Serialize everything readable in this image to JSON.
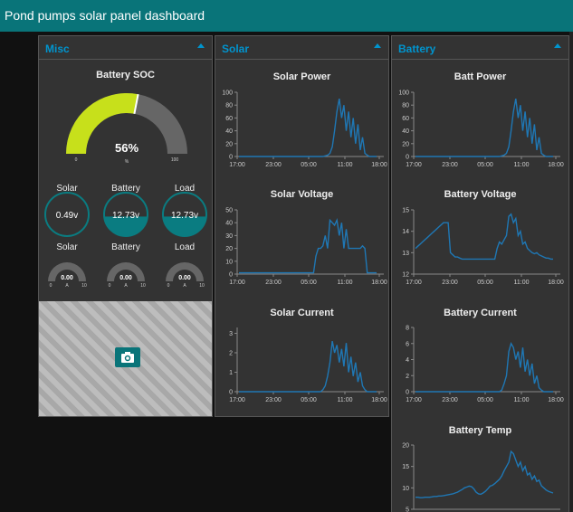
{
  "header": {
    "title": "Pond pumps solar panel dashboard"
  },
  "groups": {
    "misc": {
      "title": "Misc",
      "soc": {
        "title": "Battery SOC",
        "value": "56%",
        "percent": 56,
        "min": "0",
        "unit": "%",
        "max": "100"
      },
      "levels": [
        {
          "label": "Solar",
          "value": "0.49v",
          "fill": 0.0
        },
        {
          "label": "Battery",
          "value": "12.73v",
          "fill": 0.45
        },
        {
          "label": "Load",
          "value": "12.73v",
          "fill": 0.45
        }
      ],
      "currents": [
        {
          "label": "Solar",
          "value": "0.00",
          "min": "0",
          "unit": "A",
          "max": "10"
        },
        {
          "label": "Battery",
          "value": "0.00",
          "min": "0",
          "unit": "A",
          "max": "10"
        },
        {
          "label": "Load",
          "value": "0.00",
          "min": "0",
          "unit": "A",
          "max": "10"
        }
      ],
      "camera_icon": "camera-icon"
    },
    "solar": {
      "title": "Solar"
    },
    "battery": {
      "title": "Battery"
    }
  },
  "colors": {
    "accent": "#097479",
    "line": "#1f77b4",
    "soc_fill": "#c7e01b",
    "title": "#0094ce"
  },
  "chart_data": [
    {
      "id": "solar_power",
      "title": "Solar Power",
      "type": "line",
      "x_ticks": [
        "17:00",
        "23:00",
        "05:00",
        "11:00",
        "18:00"
      ],
      "y_ticks": [
        0,
        20,
        40,
        60,
        80,
        100
      ],
      "ylim": [
        0,
        100
      ],
      "values": [
        0,
        0,
        0,
        0,
        0,
        0,
        0,
        0,
        0,
        0,
        0,
        0,
        0,
        0,
        0,
        0,
        0,
        0,
        0,
        0,
        0,
        0,
        0,
        0,
        0,
        0,
        0,
        0,
        0,
        0,
        0,
        0,
        0,
        0,
        0,
        0,
        0,
        1,
        2,
        5,
        15,
        40,
        70,
        90,
        60,
        80,
        40,
        70,
        30,
        60,
        20,
        50,
        10,
        30,
        5,
        2,
        0,
        0,
        0,
        0
      ]
    },
    {
      "id": "solar_voltage",
      "title": "Solar Voltage",
      "type": "line",
      "x_ticks": [
        "17:00",
        "23:00",
        "05:00",
        "11:00",
        "18:00"
      ],
      "y_ticks": [
        0,
        10,
        20,
        30,
        40,
        50
      ],
      "ylim": [
        0,
        50
      ],
      "values": [
        1,
        1,
        1,
        1,
        1,
        1,
        1,
        1,
        1,
        1,
        1,
        1,
        1,
        1,
        1,
        1,
        1,
        1,
        1,
        1,
        1,
        1,
        1,
        1,
        1,
        1,
        1,
        1,
        1,
        1,
        1,
        1,
        1,
        14,
        20,
        20,
        22,
        30,
        20,
        42,
        40,
        38,
        42,
        30,
        40,
        20,
        35,
        20,
        20,
        20,
        20,
        20,
        20,
        22,
        20,
        1,
        1,
        1,
        1,
        1
      ]
    },
    {
      "id": "solar_current",
      "title": "Solar Current",
      "type": "line",
      "x_ticks": [
        "17:00",
        "23:00",
        "05:00",
        "11:00",
        "18:00"
      ],
      "y_ticks": [
        0,
        1,
        2,
        3
      ],
      "ylim": [
        0,
        3.3
      ],
      "values": [
        0,
        0,
        0,
        0,
        0,
        0,
        0,
        0,
        0,
        0,
        0,
        0,
        0,
        0,
        0,
        0,
        0,
        0,
        0,
        0,
        0,
        0,
        0,
        0,
        0,
        0,
        0,
        0,
        0,
        0,
        0,
        0,
        0,
        0,
        0,
        0,
        0.1,
        0.3,
        0.8,
        1.5,
        2.6,
        2,
        2.4,
        1.5,
        2.2,
        1.3,
        2.5,
        1,
        1.8,
        0.8,
        1.5,
        0.5,
        1,
        0.3,
        0.1,
        0,
        0,
        0,
        0,
        0
      ]
    },
    {
      "id": "batt_power",
      "title": "Batt Power",
      "type": "line",
      "x_ticks": [
        "17:00",
        "23:00",
        "05:00",
        "11:00",
        "18:00"
      ],
      "y_ticks": [
        0,
        20,
        40,
        60,
        80,
        100
      ],
      "ylim": [
        0,
        100
      ],
      "values": [
        0,
        0,
        0,
        0,
        0,
        0,
        0,
        0,
        0,
        0,
        0,
        0,
        0,
        0,
        0,
        0,
        0,
        0,
        0,
        0,
        0,
        0,
        0,
        0,
        0,
        0,
        0,
        0,
        0,
        0,
        0,
        0,
        0,
        0,
        0,
        0,
        0,
        1,
        2,
        5,
        15,
        40,
        70,
        90,
        60,
        80,
        40,
        70,
        30,
        60,
        20,
        50,
        10,
        30,
        5,
        2,
        0,
        0,
        0,
        0
      ]
    },
    {
      "id": "battery_voltage",
      "title": "Battery Voltage",
      "type": "line",
      "x_ticks": [
        "17:00",
        "23:00",
        "05:00",
        "11:00",
        "18:00"
      ],
      "y_ticks": [
        12,
        13,
        14,
        15
      ],
      "ylim": [
        12,
        15
      ],
      "values": [
        13.2,
        13.3,
        13.4,
        13.5,
        13.6,
        13.7,
        13.8,
        13.9,
        14.0,
        14.1,
        14.2,
        14.3,
        14.4,
        14.4,
        14.4,
        13.0,
        12.9,
        12.8,
        12.8,
        12.75,
        12.7,
        12.7,
        12.7,
        12.7,
        12.7,
        12.7,
        12.7,
        12.7,
        12.7,
        12.7,
        12.7,
        12.7,
        12.7,
        12.7,
        12.7,
        13.2,
        13.5,
        13.4,
        13.6,
        13.8,
        14.7,
        14.8,
        14.4,
        14.6,
        13.8,
        14.0,
        13.4,
        13.5,
        13.2,
        13.1,
        13.0,
        12.95,
        13.0,
        12.9,
        12.85,
        12.8,
        12.75,
        12.75,
        12.7,
        12.7
      ]
    },
    {
      "id": "battery_current",
      "title": "Battery Current",
      "type": "line",
      "x_ticks": [
        "17:00",
        "23:00",
        "05:00",
        "11:00",
        "18:00"
      ],
      "y_ticks": [
        0,
        2,
        4,
        6,
        8
      ],
      "ylim": [
        0,
        8
      ],
      "values": [
        0,
        0,
        0,
        0,
        0,
        0,
        0,
        0,
        0,
        0,
        0,
        0,
        0,
        0,
        0,
        0,
        0,
        0,
        0,
        0,
        0,
        0,
        0,
        0,
        0,
        0,
        0,
        0,
        0,
        0,
        0,
        0,
        0,
        0,
        0,
        0,
        0,
        0.2,
        1,
        2,
        5,
        6,
        5.5,
        4,
        5,
        3,
        5.5,
        2.5,
        4,
        2,
        3.5,
        1,
        2,
        0.5,
        0.2,
        0,
        0,
        0,
        0,
        0
      ]
    },
    {
      "id": "battery_temp",
      "title": "Battery Temp",
      "type": "line",
      "x_ticks": [],
      "y_ticks": [
        5,
        10,
        15,
        20
      ],
      "ylim": [
        5,
        20
      ],
      "values": [
        7.8,
        7.8,
        7.7,
        7.7,
        7.8,
        7.8,
        7.8,
        7.9,
        8.0,
        8.0,
        8.1,
        8.1,
        8.2,
        8.3,
        8.4,
        8.5,
        8.6,
        8.8,
        9.0,
        9.3,
        9.6,
        10.0,
        10.2,
        10.4,
        10.3,
        9.8,
        9.0,
        8.6,
        8.5,
        8.8,
        9.2,
        9.8,
        10.4,
        10.6,
        11.0,
        11.5,
        12.0,
        12.8,
        14.0,
        15.0,
        16.0,
        18.5,
        18.0,
        16.5,
        15.0,
        16.0,
        14.0,
        15.0,
        13.0,
        13.5,
        12.0,
        12.8,
        11.5,
        11.8,
        10.5,
        10.0,
        9.5,
        9.2,
        9.0,
        8.8
      ]
    }
  ]
}
